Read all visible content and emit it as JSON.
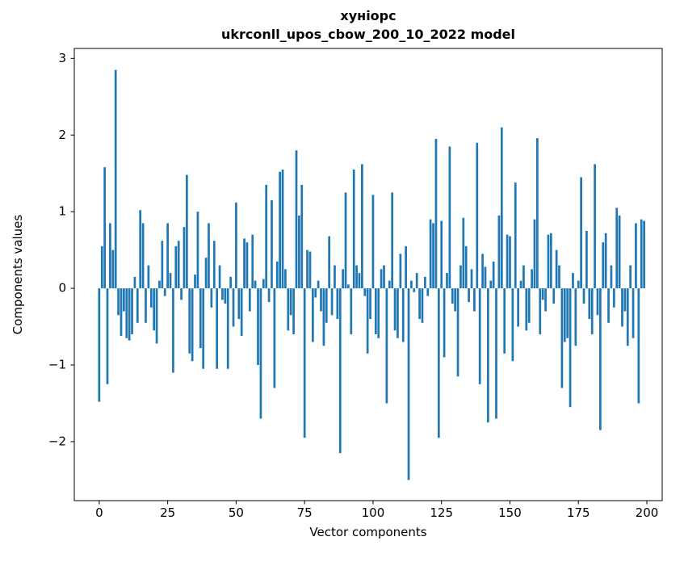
{
  "title": {
    "line1": "хуніорс",
    "line2": "ukrconll_upos_cbow_200_10_2022 model"
  },
  "axes": {
    "xlabel": "Vector components",
    "ylabel": "Components values"
  },
  "chart_data": {
    "type": "bar",
    "title": "хуніорс ukrconll_upos_cbow_200_10_2022 model",
    "xlabel": "Vector components",
    "ylabel": "Components values",
    "bar_color": "#1f77b4",
    "spine_color": "#000000",
    "grid": false,
    "legend": false,
    "x_start": 0,
    "bar_width": 0.8,
    "x_ticks": [
      0,
      25,
      50,
      75,
      100,
      125,
      150,
      175,
      200
    ],
    "y_ticks": [
      -2,
      -1,
      0,
      1,
      2,
      3
    ],
    "xlim": [
      -9.1,
      205.6
    ],
    "ylim": [
      -2.77,
      3.13
    ],
    "values": [
      -1.48,
      0.55,
      1.58,
      -1.25,
      0.85,
      0.5,
      2.85,
      -0.35,
      -0.62,
      -0.3,
      -0.65,
      -0.68,
      -0.6,
      0.15,
      -0.45,
      1.02,
      0.85,
      -0.45,
      0.3,
      -0.25,
      -0.55,
      -0.72,
      0.1,
      0.62,
      -0.1,
      0.85,
      0.2,
      -1.1,
      0.55,
      0.62,
      -0.15,
      0.8,
      1.48,
      -0.85,
      -0.95,
      0.18,
      1.0,
      -0.78,
      -1.05,
      0.4,
      0.85,
      -0.25,
      0.62,
      -1.05,
      0.3,
      -0.15,
      -0.2,
      -1.05,
      0.15,
      -0.5,
      1.12,
      -0.4,
      -0.62,
      0.65,
      0.6,
      -0.3,
      0.7,
      0.1,
      -1.0,
      -1.7,
      0.12,
      1.35,
      -0.18,
      1.15,
      -1.3,
      0.35,
      1.52,
      1.55,
      0.25,
      -0.55,
      -0.35,
      -0.6,
      1.8,
      0.95,
      1.35,
      -1.95,
      0.5,
      0.48,
      -0.7,
      -0.12,
      0.1,
      -0.3,
      -0.75,
      -0.45,
      0.68,
      -0.35,
      0.3,
      -0.4,
      -2.15,
      0.25,
      1.25,
      0.05,
      -0.6,
      1.55,
      0.3,
      0.2,
      1.62,
      -0.1,
      -0.85,
      -0.4,
      1.22,
      -0.6,
      -0.65,
      0.25,
      0.3,
      -1.5,
      0.1,
      1.25,
      -0.55,
      -0.65,
      0.45,
      -0.7,
      0.55,
      -2.5,
      0.1,
      -0.05,
      0.2,
      -0.4,
      -0.45,
      0.15,
      -0.1,
      0.9,
      0.85,
      1.95,
      -1.95,
      0.88,
      -0.9,
      0.2,
      1.85,
      -0.2,
      -0.3,
      -1.15,
      0.3,
      0.92,
      0.55,
      -0.18,
      0.25,
      -0.3,
      1.9,
      -1.25,
      0.45,
      0.28,
      -1.75,
      0.1,
      0.35,
      -1.7,
      0.95,
      2.1,
      -0.85,
      0.7,
      0.68,
      -0.95,
      1.38,
      -0.5,
      0.1,
      0.3,
      -0.55,
      -0.45,
      0.25,
      0.9,
      1.96,
      -0.6,
      -0.15,
      -0.3,
      0.7,
      0.72,
      -0.2,
      0.5,
      0.3,
      -1.3,
      -0.7,
      -0.65,
      -1.55,
      0.2,
      -0.75,
      0.1,
      1.45,
      -0.2,
      0.75,
      -0.4,
      -0.6,
      1.62,
      -0.35,
      -1.85,
      0.6,
      0.72,
      -0.45,
      0.3,
      -0.25,
      1.05,
      0.95,
      -0.5,
      -0.3,
      -0.75,
      0.3,
      -0.65,
      0.85,
      -1.5,
      0.9,
      0.88
    ]
  }
}
